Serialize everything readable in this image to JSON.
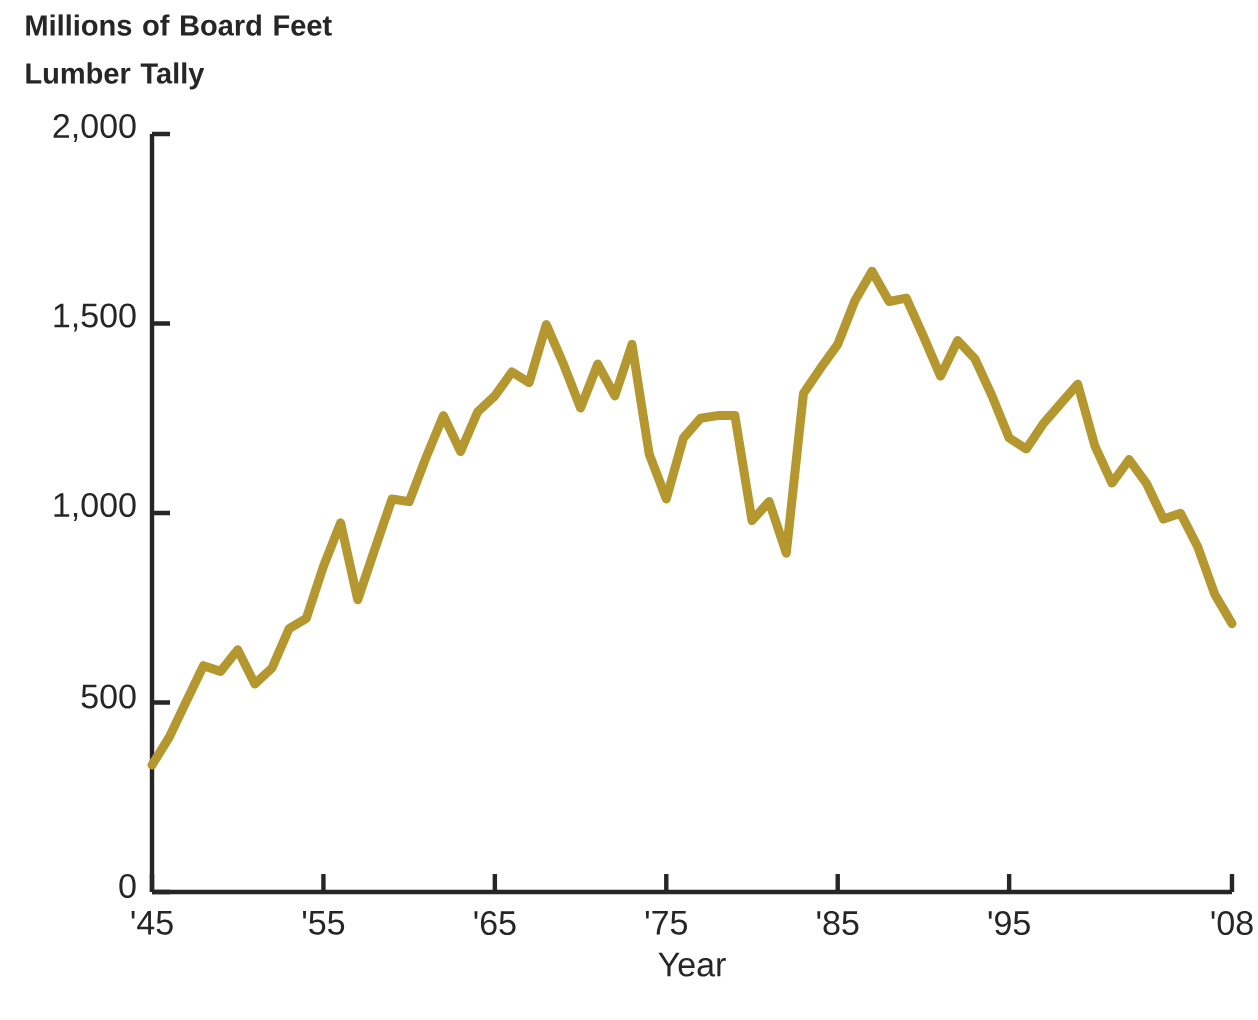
{
  "chart_data": {
    "type": "line",
    "ylabel": "Millions of Board Feet Lumber Tally",
    "xlabel": "Year",
    "x": [
      1945,
      1946,
      1947,
      1948,
      1949,
      1950,
      1951,
      1952,
      1953,
      1954,
      1955,
      1956,
      1957,
      1958,
      1959,
      1960,
      1961,
      1962,
      1963,
      1964,
      1965,
      1966,
      1967,
      1968,
      1969,
      1970,
      1971,
      1972,
      1973,
      1974,
      1975,
      1976,
      1977,
      1978,
      1979,
      1980,
      1981,
      1982,
      1983,
      1984,
      1985,
      1986,
      1987,
      1988,
      1989,
      1990,
      1991,
      1992,
      1993,
      1994,
      1995,
      1996,
      1997,
      1998,
      1999,
      2000,
      2001,
      2002,
      2003,
      2004,
      2005,
      2006,
      2007,
      2008
    ],
    "series": [
      {
        "color": "#b5972f",
        "values": [
          335,
          408,
          503,
          597,
          582,
          639,
          549,
          591,
          695,
          722,
          859,
          974,
          771,
          905,
          1037,
          1030,
          1148,
          1257,
          1162,
          1267,
          1309,
          1372,
          1344,
          1497,
          1393,
          1277,
          1393,
          1309,
          1445,
          1156,
          1037,
          1198,
          1250,
          1257,
          1257,
          980,
          1030,
          894,
          1315,
          1382,
          1445,
          1560,
          1638,
          1558,
          1567,
          1466,
          1361,
          1455,
          1407,
          1309,
          1198,
          1169,
          1236,
          1288,
          1340,
          1177,
          1079,
          1141,
          1079,
          984,
          999,
          911,
          785,
          708
        ]
      }
    ],
    "xlim": [
      1945,
      2008
    ],
    "ylim": [
      0,
      2000
    ],
    "xticks": [
      {
        "value": 1945,
        "label": "'45"
      },
      {
        "value": 1955,
        "label": "'55"
      },
      {
        "value": 1965,
        "label": "'65"
      },
      {
        "value": 1975,
        "label": "'75"
      },
      {
        "value": 1985,
        "label": "'85"
      },
      {
        "value": 1995,
        "label": "'95"
      },
      {
        "value": 2008,
        "label": "'08"
      }
    ],
    "yticks": [
      {
        "value": 0,
        "label": "0"
      },
      {
        "value": 500,
        "label": "500"
      },
      {
        "value": 1000,
        "label": "1,000"
      },
      {
        "value": 1500,
        "label": "1,500"
      },
      {
        "value": 2000,
        "label": "2,000"
      }
    ],
    "grid": false,
    "marker": "none",
    "line_style": "solid"
  }
}
